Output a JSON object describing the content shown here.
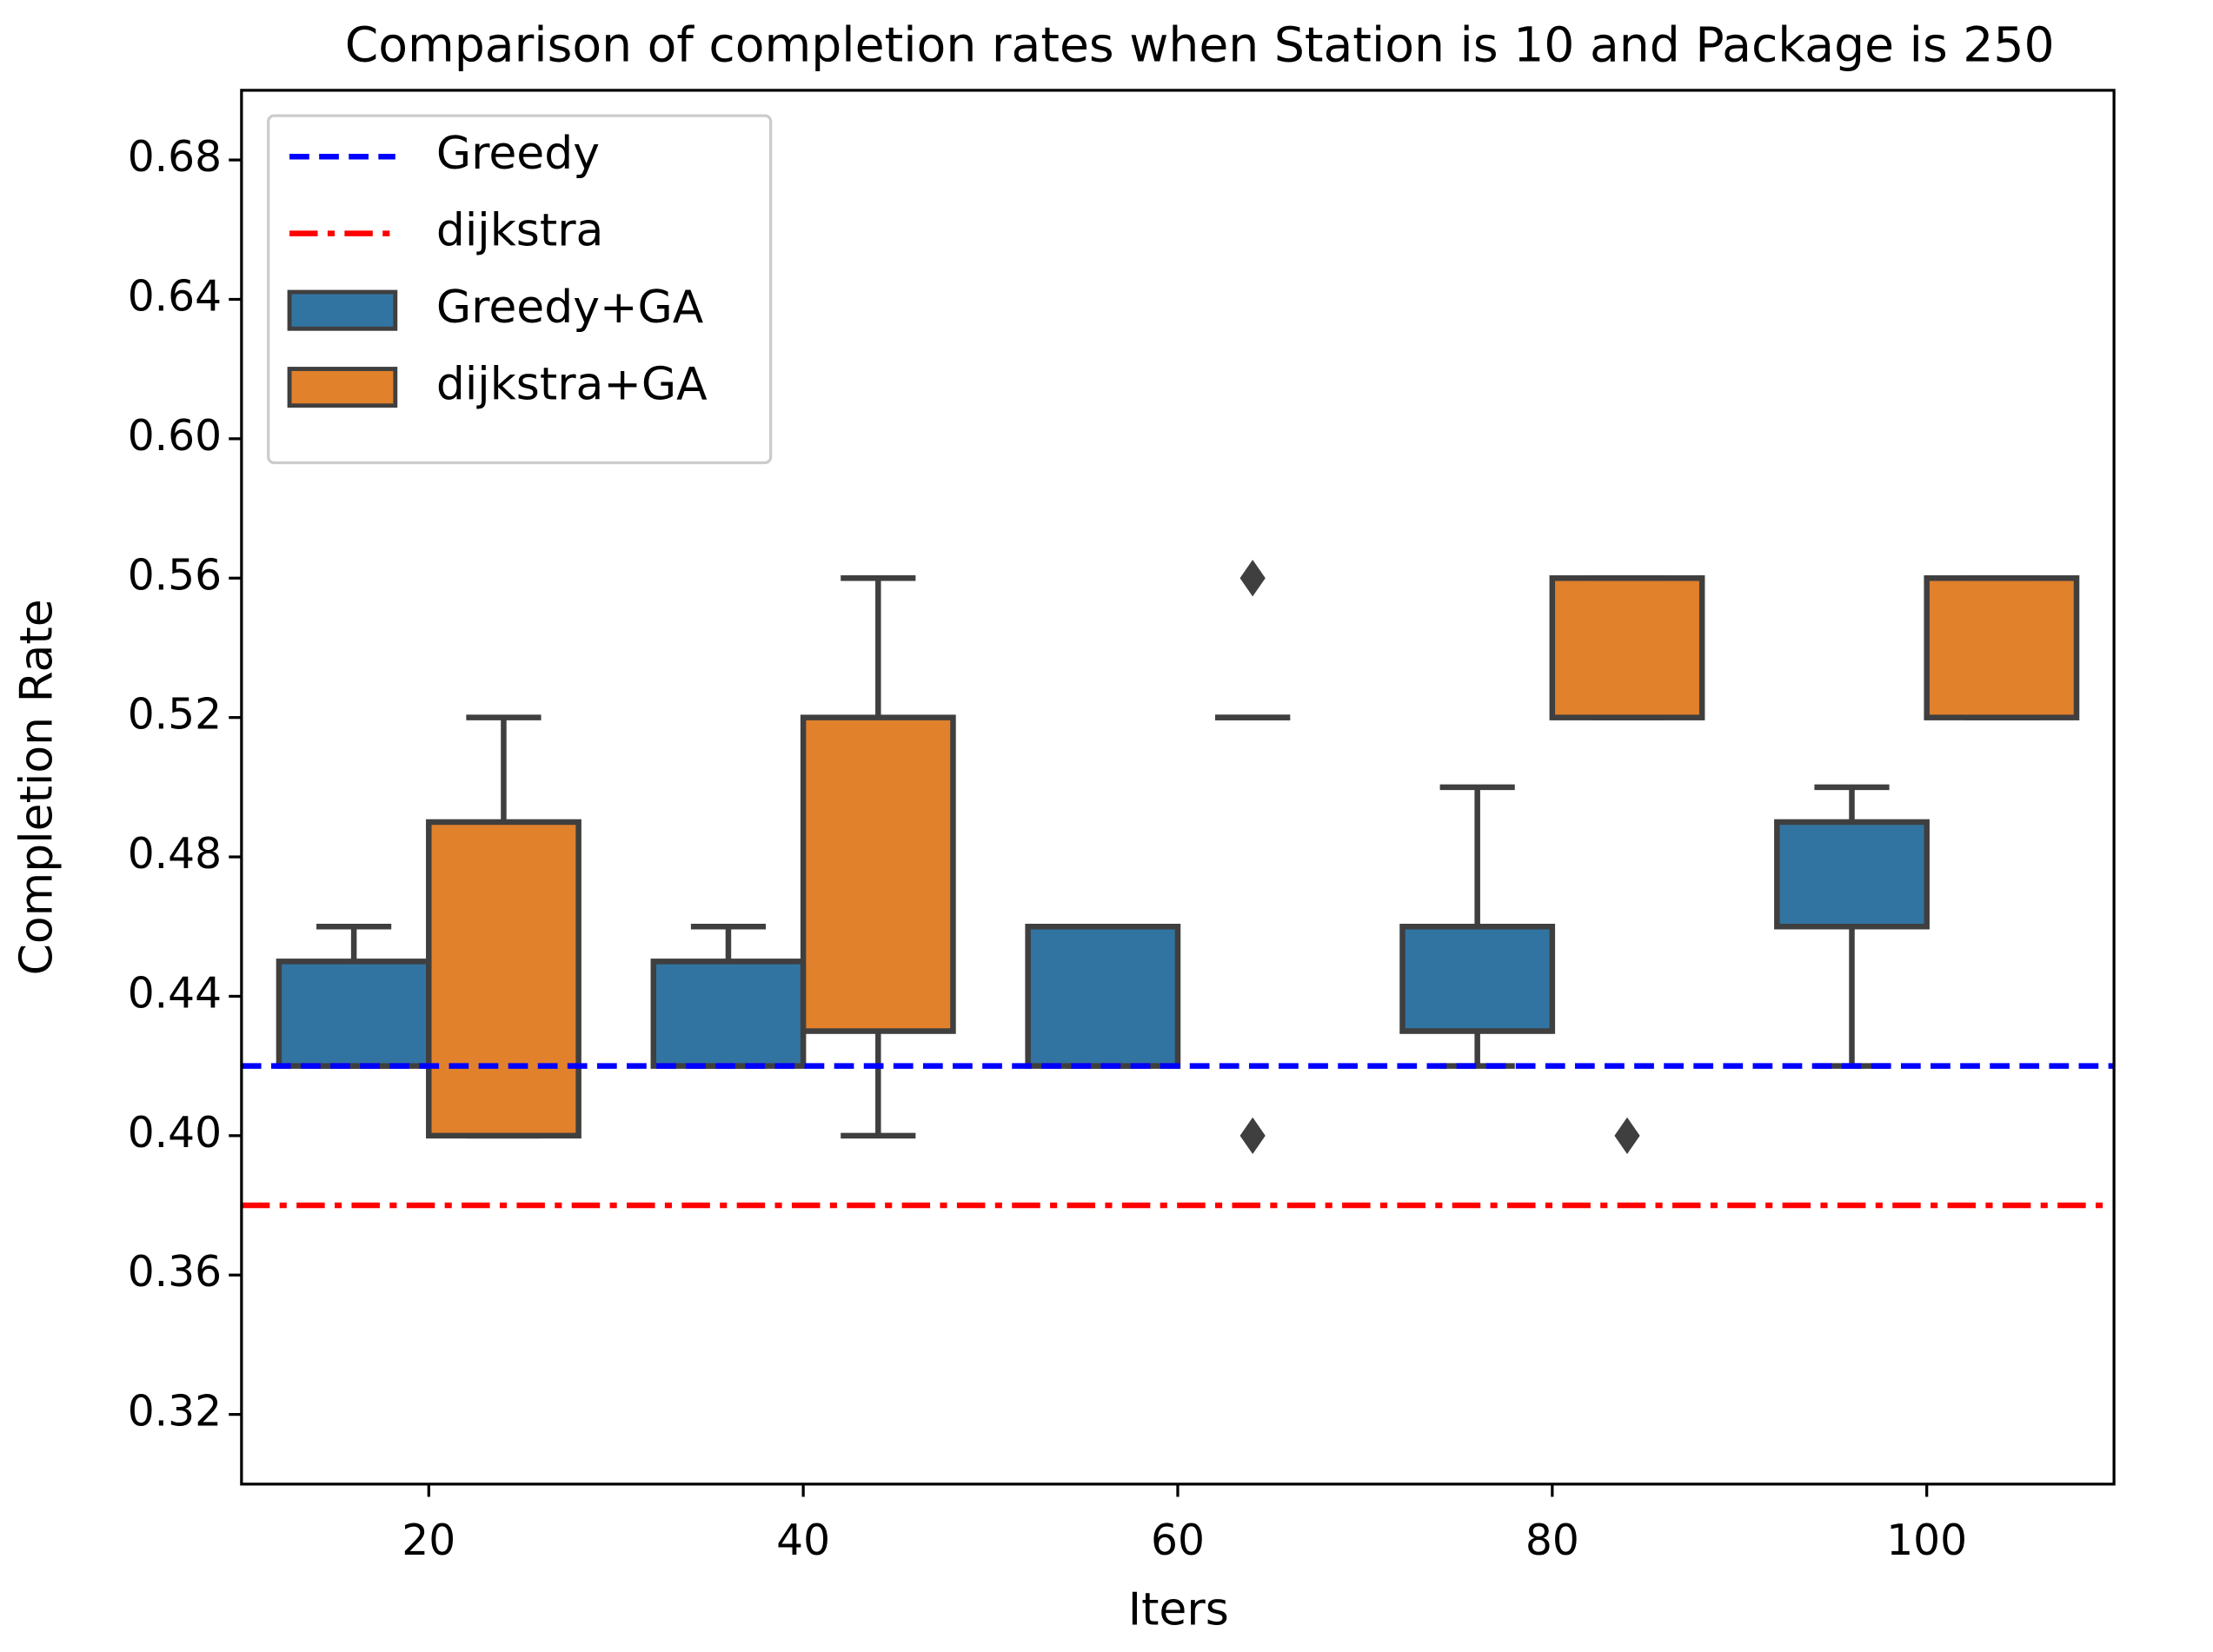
{
  "chart_data": {
    "type": "box",
    "title": "Comparison of completion rates when Station is 10 and Package is 250",
    "x_label": "Iters",
    "y_label": "Completion Rate",
    "categories": [
      "20",
      "40",
      "60",
      "80",
      "100"
    ],
    "ylim": [
      0.3,
      0.7
    ],
    "yticks": [
      {
        "value": 0.32,
        "label": "0.32"
      },
      {
        "value": 0.36,
        "label": "0.36"
      },
      {
        "value": 0.4,
        "label": "0.40"
      },
      {
        "value": 0.44,
        "label": "0.44"
      },
      {
        "value": 0.48,
        "label": "0.48"
      },
      {
        "value": 0.52,
        "label": "0.52"
      },
      {
        "value": 0.56,
        "label": "0.56"
      },
      {
        "value": 0.6,
        "label": "0.60"
      },
      {
        "value": 0.64,
        "label": "0.64"
      },
      {
        "value": 0.68,
        "label": "0.68"
      }
    ],
    "legend": "upper left",
    "lines": [
      {
        "name": "Greedy",
        "color": "#0000ff",
        "style": "dashed",
        "value": 0.42
      },
      {
        "name": "dijkstra",
        "color": "#ff0000",
        "style": "dashdot",
        "value": 0.38
      }
    ],
    "series": [
      {
        "name": "Greedy+GA",
        "color": "#3274a1",
        "boxes": [
          {
            "min": 0.42,
            "q1": 0.42,
            "q3": 0.45,
            "max": 0.46,
            "outliers": []
          },
          {
            "min": 0.42,
            "q1": 0.42,
            "q3": 0.45,
            "max": 0.46,
            "outliers": []
          },
          {
            "min": 0.42,
            "q1": 0.42,
            "q3": 0.46,
            "max": 0.46,
            "outliers": []
          },
          {
            "min": 0.42,
            "q1": 0.43,
            "q3": 0.46,
            "max": 0.5,
            "outliers": []
          },
          {
            "min": 0.42,
            "q1": 0.46,
            "q3": 0.49,
            "max": 0.5,
            "outliers": []
          }
        ]
      },
      {
        "name": "dijkstra+GA",
        "color": "#e1812c",
        "boxes": [
          {
            "min": 0.4,
            "q1": 0.4,
            "q3": 0.49,
            "max": 0.52,
            "outliers": []
          },
          {
            "min": 0.4,
            "q1": 0.43,
            "q3": 0.52,
            "max": 0.56,
            "outliers": []
          },
          {
            "min": 0.52,
            "q1": 0.52,
            "q3": 0.52,
            "max": 0.52,
            "outliers": [
              0.56,
              0.4
            ]
          },
          {
            "min": 0.52,
            "q1": 0.52,
            "q3": 0.56,
            "max": 0.56,
            "outliers": [
              0.4
            ]
          },
          {
            "min": 0.52,
            "q1": 0.52,
            "q3": 0.56,
            "max": 0.56,
            "outliers": []
          }
        ]
      }
    ]
  }
}
